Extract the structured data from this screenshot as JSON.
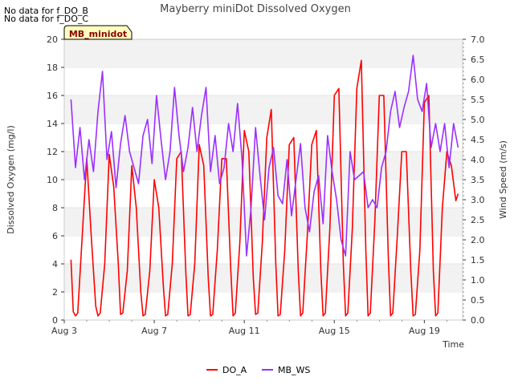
{
  "notes": [
    "No data for f_DO_B",
    "No data for f_DO_C"
  ],
  "chart_data": {
    "type": "line",
    "title": "Mayberry miniDot Dissolved Oxygen",
    "badge": "MB_minidot",
    "xlabel": "Time",
    "ylabel": "Dissolved Oxygen (mg/l)",
    "y2label": "Wind Speed (m/s)",
    "xlim": [
      3,
      20.7
    ],
    "ylim": [
      0,
      20
    ],
    "y2lim": [
      0,
      7
    ],
    "x_ticks": [
      {
        "value": 3,
        "label": "Aug 3"
      },
      {
        "value": 7,
        "label": "Aug 7"
      },
      {
        "value": 11,
        "label": "Aug 11"
      },
      {
        "value": 15,
        "label": "Aug 15"
      },
      {
        "value": 19,
        "label": "Aug 19"
      }
    ],
    "y_ticks": [
      0,
      2,
      4,
      6,
      8,
      10,
      12,
      14,
      16,
      18,
      20
    ],
    "y2_ticks": [
      "0.0",
      "0.5",
      "1.0",
      "1.5",
      "2.0",
      "2.5",
      "3.0",
      "3.5",
      "4.0",
      "4.5",
      "5.0",
      "5.5",
      "6.0",
      "6.5",
      "7.0"
    ],
    "legend_position": "bottom-center",
    "series": [
      {
        "name": "DO_A",
        "axis": "left",
        "color": "#ff0000",
        "x": [
          3.3,
          3.4,
          3.5,
          3.6,
          3.8,
          4.0,
          4.2,
          4.4,
          4.5,
          4.6,
          4.8,
          5.0,
          5.2,
          5.4,
          5.5,
          5.6,
          5.8,
          6.0,
          6.2,
          6.4,
          6.5,
          6.6,
          6.8,
          7.0,
          7.2,
          7.4,
          7.5,
          7.6,
          7.8,
          8.0,
          8.2,
          8.4,
          8.5,
          8.6,
          8.8,
          9.0,
          9.2,
          9.4,
          9.5,
          9.6,
          9.8,
          10.0,
          10.2,
          10.4,
          10.5,
          10.6,
          10.8,
          11.0,
          11.2,
          11.4,
          11.5,
          11.6,
          11.8,
          12.0,
          12.2,
          12.4,
          12.5,
          12.6,
          12.8,
          13.0,
          13.2,
          13.4,
          13.5,
          13.6,
          13.8,
          14.0,
          14.2,
          14.4,
          14.5,
          14.6,
          14.8,
          15.0,
          15.2,
          15.4,
          15.5,
          15.6,
          15.8,
          16.0,
          16.2,
          16.4,
          16.5,
          16.6,
          16.8,
          17.0,
          17.2,
          17.4,
          17.5,
          17.6,
          17.8,
          18.0,
          18.2,
          18.4,
          18.5,
          18.6,
          18.8,
          19.0,
          19.2,
          19.4,
          19.5,
          19.6,
          19.8,
          20.0,
          20.2,
          20.4,
          20.5
        ],
        "y": [
          4.3,
          0.6,
          0.3,
          0.5,
          6.0,
          11.5,
          6.0,
          1.0,
          0.3,
          0.5,
          4.0,
          11.8,
          9.5,
          4.0,
          0.4,
          0.5,
          3.5,
          11.0,
          8.0,
          2.0,
          0.3,
          0.4,
          3.5,
          10.0,
          8.0,
          2.5,
          0.3,
          0.4,
          4.0,
          11.5,
          12.0,
          3.5,
          0.3,
          0.4,
          4.0,
          12.5,
          11.0,
          3.0,
          0.3,
          0.4,
          5.0,
          11.5,
          11.5,
          3.5,
          0.3,
          0.5,
          5.5,
          13.5,
          12.0,
          3.0,
          0.4,
          0.5,
          5.5,
          13.0,
          15.0,
          4.0,
          0.3,
          0.4,
          5.0,
          12.5,
          13.0,
          3.5,
          0.3,
          0.5,
          6.0,
          12.5,
          13.5,
          3.5,
          0.3,
          0.5,
          6.5,
          16.0,
          16.5,
          4.0,
          0.3,
          0.5,
          6.5,
          16.5,
          18.5,
          5.0,
          0.3,
          0.5,
          7.0,
          16.0,
          16.0,
          4.5,
          0.3,
          0.5,
          6.0,
          12.0,
          12.0,
          3.5,
          0.3,
          0.4,
          5.0,
          15.5,
          16.0,
          3.5,
          0.3,
          0.5,
          8.0,
          12.0,
          11.0,
          8.5,
          9.0
        ]
      },
      {
        "name": "MB_WS",
        "axis": "right",
        "color": "#9b30ff",
        "x": [
          3.3,
          3.5,
          3.7,
          3.9,
          4.1,
          4.3,
          4.5,
          4.7,
          4.9,
          5.1,
          5.3,
          5.5,
          5.7,
          5.9,
          6.1,
          6.3,
          6.5,
          6.7,
          6.9,
          7.1,
          7.3,
          7.5,
          7.7,
          7.9,
          8.1,
          8.3,
          8.5,
          8.7,
          8.9,
          9.1,
          9.3,
          9.5,
          9.7,
          9.9,
          10.1,
          10.3,
          10.5,
          10.7,
          10.9,
          11.1,
          11.3,
          11.5,
          11.7,
          11.9,
          12.1,
          12.3,
          12.5,
          12.7,
          12.9,
          13.1,
          13.3,
          13.5,
          13.7,
          13.9,
          14.1,
          14.3,
          14.5,
          14.7,
          14.9,
          15.1,
          15.3,
          15.5,
          15.7,
          15.9,
          16.1,
          16.3,
          16.5,
          16.7,
          16.9,
          17.1,
          17.3,
          17.5,
          17.7,
          17.9,
          18.1,
          18.3,
          18.5,
          18.7,
          18.9,
          19.1,
          19.3,
          19.5,
          19.7,
          19.9,
          20.1,
          20.3,
          20.5
        ],
        "y": [
          5.5,
          3.8,
          4.8,
          3.5,
          4.5,
          3.7,
          5.2,
          6.2,
          4.0,
          4.7,
          3.3,
          4.4,
          5.1,
          4.2,
          3.8,
          3.4,
          4.6,
          5.0,
          3.9,
          5.6,
          4.5,
          3.5,
          4.2,
          5.8,
          4.6,
          3.7,
          4.3,
          5.3,
          4.2,
          5.1,
          5.8,
          3.7,
          4.6,
          3.4,
          3.8,
          4.9,
          4.2,
          5.4,
          4.0,
          1.6,
          2.8,
          4.8,
          3.6,
          2.5,
          3.8,
          4.3,
          3.1,
          2.9,
          4.0,
          2.6,
          3.5,
          4.4,
          2.8,
          2.2,
          3.2,
          3.6,
          2.4,
          4.6,
          3.7,
          3.0,
          2.0,
          1.6,
          4.2,
          3.5,
          3.6,
          3.7,
          2.8,
          3.0,
          2.8,
          3.8,
          4.2,
          5.2,
          5.7,
          4.8,
          5.3,
          5.7,
          6.6,
          5.5,
          5.2,
          5.9,
          4.3,
          4.9,
          4.2,
          4.9,
          3.8,
          4.9,
          4.3
        ]
      }
    ]
  }
}
